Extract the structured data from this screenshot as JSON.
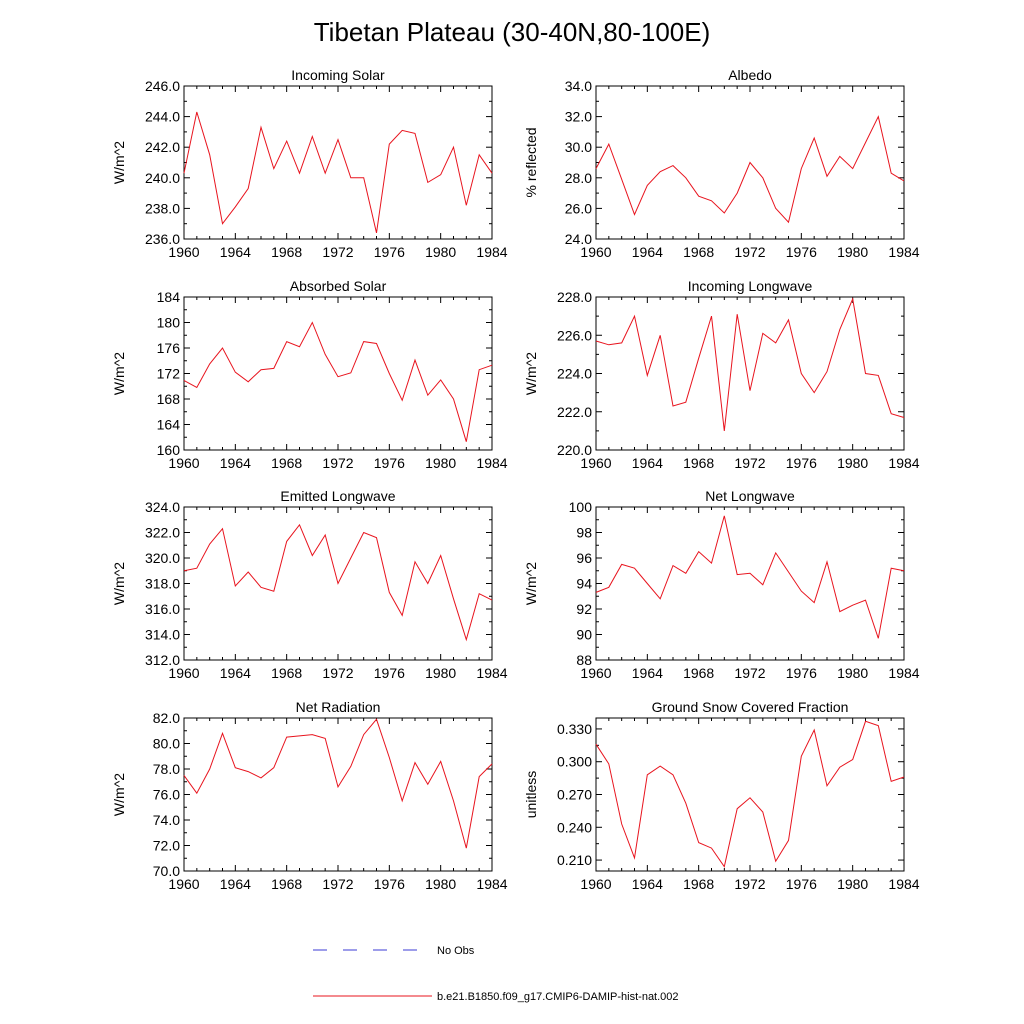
{
  "figure": {
    "title": "Tibetan Plateau (30-40N,80-100E)"
  },
  "legend": {
    "items": [
      {
        "label": "No Obs",
        "color": "#3b3bd6",
        "style": "dashed"
      },
      {
        "label": "b.e21.B1850.f09_g17.CMIP6-DAMIP-hist-nat.002",
        "color": "#e8141e",
        "style": "solid"
      }
    ]
  },
  "chart_data": [
    {
      "type": "line",
      "title": "Incoming Solar",
      "ylabel": "W/m^2",
      "xlim": [
        1960,
        1984
      ],
      "ylim": [
        236.0,
        246.0
      ],
      "xticks": [
        1960,
        1964,
        1968,
        1972,
        1976,
        1980,
        1984
      ],
      "yticks": [
        "236.0",
        "238.0",
        "240.0",
        "242.0",
        "244.0",
        "246.0"
      ],
      "series": [
        {
          "color": "#e8141e",
          "x": [
            1960,
            1961,
            1962,
            1963,
            1964,
            1965,
            1966,
            1967,
            1968,
            1969,
            1970,
            1971,
            1972,
            1973,
            1974,
            1975,
            1976,
            1977,
            1978,
            1979,
            1980,
            1981,
            1982,
            1983,
            1984
          ],
          "y": [
            240.3,
            244.3,
            241.5,
            237.0,
            238.1,
            239.3,
            243.3,
            240.6,
            242.4,
            240.3,
            242.7,
            240.3,
            242.5,
            240.0,
            240.0,
            236.4,
            242.2,
            243.1,
            242.9,
            239.7,
            240.2,
            242.0,
            238.2,
            241.5,
            240.3
          ]
        }
      ]
    },
    {
      "type": "line",
      "title": "Albedo",
      "ylabel": "% reflected",
      "xlim": [
        1960,
        1984
      ],
      "ylim": [
        24.0,
        34.0
      ],
      "xticks": [
        1960,
        1964,
        1968,
        1972,
        1976,
        1980,
        1984
      ],
      "yticks": [
        "24.0",
        "26.0",
        "28.0",
        "30.0",
        "32.0",
        "34.0"
      ],
      "series": [
        {
          "color": "#e8141e",
          "x": [
            1960,
            1961,
            1962,
            1963,
            1964,
            1965,
            1966,
            1967,
            1968,
            1969,
            1970,
            1971,
            1972,
            1973,
            1974,
            1975,
            1976,
            1977,
            1978,
            1979,
            1980,
            1981,
            1982,
            1983,
            1984
          ],
          "y": [
            28.6,
            30.2,
            27.9,
            25.6,
            27.5,
            28.4,
            28.8,
            28.0,
            26.8,
            26.5,
            25.7,
            27.0,
            29.0,
            28.0,
            26.0,
            25.1,
            28.6,
            30.6,
            28.1,
            29.4,
            28.6,
            30.3,
            32.0,
            28.3,
            27.8
          ]
        }
      ]
    },
    {
      "type": "line",
      "title": "Absorbed Solar",
      "ylabel": "W/m^2",
      "xlim": [
        1960,
        1984
      ],
      "ylim": [
        160,
        184
      ],
      "xticks": [
        1960,
        1964,
        1968,
        1972,
        1976,
        1980,
        1984
      ],
      "yticks": [
        "160",
        "164",
        "168",
        "172",
        "176",
        "180",
        "184"
      ],
      "series": [
        {
          "color": "#e8141e",
          "x": [
            1960,
            1961,
            1962,
            1963,
            1964,
            1965,
            1966,
            1967,
            1968,
            1969,
            1970,
            1971,
            1972,
            1973,
            1974,
            1975,
            1976,
            1977,
            1978,
            1979,
            1980,
            1981,
            1982,
            1983,
            1984
          ],
          "y": [
            170.9,
            169.8,
            173.5,
            176.0,
            172.2,
            170.7,
            172.6,
            172.8,
            177.0,
            176.2,
            180.0,
            175.0,
            171.5,
            172.1,
            177.0,
            176.7,
            172.0,
            167.8,
            174.1,
            168.6,
            171.0,
            168.0,
            161.3,
            172.6,
            173.3
          ]
        }
      ]
    },
    {
      "type": "line",
      "title": "Incoming Longwave",
      "ylabel": "W/m^2",
      "xlim": [
        1960,
        1984
      ],
      "ylim": [
        220.0,
        228.0
      ],
      "xticks": [
        1960,
        1964,
        1968,
        1972,
        1976,
        1980,
        1984
      ],
      "yticks": [
        "220.0",
        "222.0",
        "224.0",
        "226.0",
        "228.0"
      ],
      "series": [
        {
          "color": "#e8141e",
          "x": [
            1960,
            1961,
            1962,
            1963,
            1964,
            1965,
            1966,
            1967,
            1968,
            1969,
            1970,
            1971,
            1972,
            1973,
            1974,
            1975,
            1976,
            1977,
            1978,
            1979,
            1980,
            1981,
            1982,
            1983,
            1984
          ],
          "y": [
            225.7,
            225.5,
            225.6,
            227.0,
            223.9,
            226.0,
            222.3,
            222.5,
            224.8,
            227.0,
            221.0,
            227.1,
            223.1,
            226.1,
            225.6,
            226.8,
            224.0,
            223.0,
            224.1,
            226.3,
            227.9,
            224.0,
            223.9,
            221.9,
            221.7
          ]
        }
      ]
    },
    {
      "type": "line",
      "title": "Emitted Longwave",
      "ylabel": "W/m^2",
      "xlim": [
        1960,
        1984
      ],
      "ylim": [
        312.0,
        324.0
      ],
      "xticks": [
        1960,
        1964,
        1968,
        1972,
        1976,
        1980,
        1984
      ],
      "yticks": [
        "312.0",
        "314.0",
        "316.0",
        "318.0",
        "320.0",
        "322.0",
        "324.0"
      ],
      "series": [
        {
          "color": "#e8141e",
          "x": [
            1960,
            1961,
            1962,
            1963,
            1964,
            1965,
            1966,
            1967,
            1968,
            1969,
            1970,
            1971,
            1972,
            1973,
            1974,
            1975,
            1976,
            1977,
            1978,
            1979,
            1980,
            1981,
            1982,
            1983,
            1984
          ],
          "y": [
            319.0,
            319.2,
            321.1,
            322.3,
            317.8,
            318.9,
            317.7,
            317.4,
            321.3,
            322.6,
            320.2,
            321.8,
            318.0,
            320.0,
            322.0,
            321.6,
            317.3,
            315.5,
            319.7,
            318.0,
            320.2,
            316.8,
            313.6,
            317.2,
            316.7
          ]
        }
      ]
    },
    {
      "type": "line",
      "title": "Net Longwave",
      "ylabel": "W/m^2",
      "xlim": [
        1960,
        1984
      ],
      "ylim": [
        88,
        100
      ],
      "xticks": [
        1960,
        1964,
        1968,
        1972,
        1976,
        1980,
        1984
      ],
      "yticks": [
        "88",
        "90",
        "92",
        "94",
        "96",
        "98",
        "100"
      ],
      "series": [
        {
          "color": "#e8141e",
          "x": [
            1960,
            1961,
            1962,
            1963,
            1964,
            1965,
            1966,
            1967,
            1968,
            1969,
            1970,
            1971,
            1972,
            1973,
            1974,
            1975,
            1976,
            1977,
            1978,
            1979,
            1980,
            1981,
            1982,
            1983,
            1984
          ],
          "y": [
            93.3,
            93.7,
            95.5,
            95.2,
            94.0,
            92.8,
            95.4,
            94.8,
            96.5,
            95.6,
            99.3,
            94.7,
            94.8,
            93.9,
            96.4,
            94.9,
            93.4,
            92.5,
            95.7,
            91.8,
            92.3,
            92.7,
            89.7,
            95.2,
            95.0
          ]
        }
      ]
    },
    {
      "type": "line",
      "title": "Net Radiation",
      "ylabel": "W/m^2",
      "xlim": [
        1960,
        1984
      ],
      "ylim": [
        70.0,
        82.0
      ],
      "xticks": [
        1960,
        1964,
        1968,
        1972,
        1976,
        1980,
        1984
      ],
      "yticks": [
        "70.0",
        "72.0",
        "74.0",
        "76.0",
        "78.0",
        "80.0",
        "82.0"
      ],
      "series": [
        {
          "color": "#e8141e",
          "x": [
            1960,
            1961,
            1962,
            1963,
            1964,
            1965,
            1966,
            1967,
            1968,
            1969,
            1970,
            1971,
            1972,
            1973,
            1974,
            1975,
            1976,
            1977,
            1978,
            1979,
            1980,
            1981,
            1982,
            1983,
            1984
          ],
          "y": [
            77.5,
            76.1,
            78.0,
            80.8,
            78.1,
            77.8,
            77.3,
            78.1,
            80.5,
            80.6,
            80.7,
            80.4,
            76.6,
            78.2,
            80.7,
            81.9,
            78.9,
            75.5,
            78.5,
            76.8,
            78.6,
            75.5,
            71.8,
            77.4,
            78.4
          ]
        }
      ]
    },
    {
      "type": "line",
      "title": "Ground Snow Covered Fraction",
      "ylabel": "unitless",
      "xlim": [
        1960,
        1984
      ],
      "ylim": [
        0.2,
        0.34
      ],
      "xticks": [
        1960,
        1964,
        1968,
        1972,
        1976,
        1980,
        1984
      ],
      "yticks": [
        "0.210",
        "0.240",
        "0.270",
        "0.300",
        "0.330"
      ],
      "yticks_values": [
        0.21,
        0.24,
        0.27,
        0.3,
        0.33
      ],
      "series": [
        {
          "color": "#e8141e",
          "x": [
            1960,
            1961,
            1962,
            1963,
            1964,
            1965,
            1966,
            1967,
            1968,
            1969,
            1970,
            1971,
            1972,
            1973,
            1974,
            1975,
            1976,
            1977,
            1978,
            1979,
            1980,
            1981,
            1982,
            1983,
            1984
          ],
          "y": [
            0.316,
            0.298,
            0.243,
            0.212,
            0.288,
            0.296,
            0.288,
            0.262,
            0.226,
            0.221,
            0.204,
            0.257,
            0.267,
            0.254,
            0.209,
            0.228,
            0.305,
            0.329,
            0.278,
            0.295,
            0.302,
            0.337,
            0.333,
            0.282,
            0.286
          ]
        }
      ]
    }
  ]
}
